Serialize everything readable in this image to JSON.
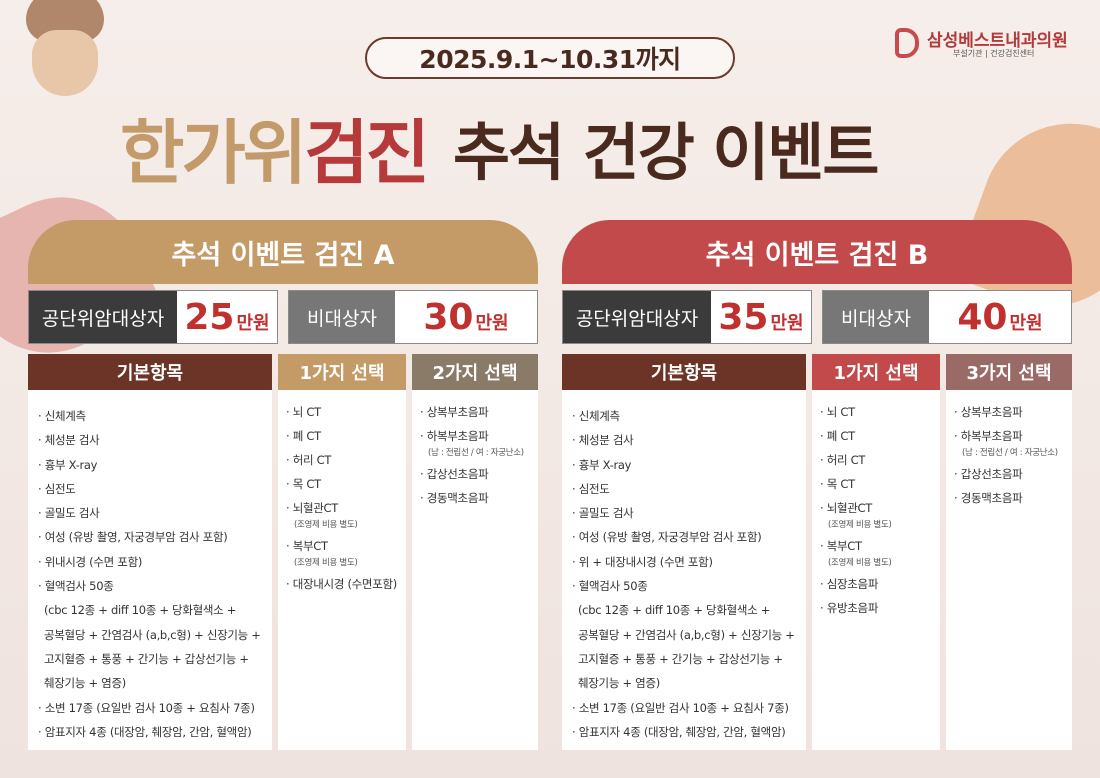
{
  "period": "2025.9.1~10.31까지",
  "logo": {
    "name": "삼성베스트내과의원",
    "sub": "부설기관 | 건강검진센터"
  },
  "title": {
    "part1": "한가위",
    "part2": "검진",
    "part3": "추석 건강 이벤트"
  },
  "colors": {
    "gold": "#c49a66",
    "red": "#c24a4a",
    "brown": "#6b3426",
    "price_red": "#c0302f"
  },
  "panelA": {
    "heading": "추석 이벤트 검진 A",
    "price1": {
      "label": "공단위암대상자",
      "num": "25",
      "unit": "만원"
    },
    "price2": {
      "label": "비대상자",
      "num": "30",
      "unit": "만원"
    },
    "col1": {
      "heading": "기본항목",
      "items": [
        "· 신체계측",
        "· 체성분 검사",
        "· 흉부 X-ray",
        "· 심전도",
        "· 골밀도 검사",
        "· 여성 (유방 촬영, 자궁경부암 검사 포함)",
        "· 위내시경 (수면 포함)",
        "· 혈액검사 50종",
        "(cbc 12종 + diff 10종 + 당화혈색소 +",
        "공복혈당 + 간염검사 (a,b,c형) + 신장기능 +",
        "고지혈증 + 통풍 + 간기능 + 갑상선기능 +",
        "췌장기능 + 염증)",
        "· 소변 17종 (요일반 검사 10종 + 요침사 7종)",
        "· 암표지자 4종 (대장암, 췌장암, 간암, 혈액암)"
      ]
    },
    "col2": {
      "heading": "1가지 선택",
      "items": [
        {
          "t": "· 뇌 CT",
          "n": ""
        },
        {
          "t": "· 폐 CT",
          "n": ""
        },
        {
          "t": "· 허리 CT",
          "n": ""
        },
        {
          "t": "· 목 CT",
          "n": ""
        },
        {
          "t": "· 뇌혈관CT",
          "n": "(조영제 비용 별도)"
        },
        {
          "t": "· 복부CT",
          "n": "(조영제 비용 별도)"
        },
        {
          "t": "· 대장내시경 (수면포함)",
          "n": ""
        }
      ]
    },
    "col3": {
      "heading": "2가지 선택",
      "items": [
        {
          "t": "· 상복부초음파",
          "n": ""
        },
        {
          "t": "· 하복부초음파",
          "n": "(남 : 전립선 / 여 : 자궁난소)"
        },
        {
          "t": "· 갑상선초음파",
          "n": ""
        },
        {
          "t": "· 경동맥초음파",
          "n": ""
        }
      ]
    }
  },
  "panelB": {
    "heading": "추석 이벤트 검진 B",
    "price1": {
      "label": "공단위암대상자",
      "num": "35",
      "unit": "만원"
    },
    "price2": {
      "label": "비대상자",
      "num": "40",
      "unit": "만원"
    },
    "col1": {
      "heading": "기본항목",
      "items": [
        "· 신체계측",
        "· 체성분 검사",
        "· 흉부 X-ray",
        "· 심전도",
        "· 골밀도 검사",
        "· 여성 (유방 촬영, 자궁경부암 검사 포함)",
        "· 위 + 대장내시경 (수면 포함)",
        "· 혈액검사 50종",
        "(cbc 12종 + diff 10종 + 당화혈색소 +",
        "공복혈당 + 간염검사 (a,b,c형) + 신장기능 +",
        "고지혈증 + 통풍 + 간기능 + 갑상선기능 +",
        "췌장기능 + 염증)",
        "· 소변 17종 (요일반 검사 10종 + 요침사 7종)",
        "· 암표지자 4종 (대장암, 췌장암, 간암, 혈액암)"
      ]
    },
    "col2": {
      "heading": "1가지 선택",
      "items": [
        {
          "t": "· 뇌 CT",
          "n": ""
        },
        {
          "t": "· 폐 CT",
          "n": ""
        },
        {
          "t": "· 허리 CT",
          "n": ""
        },
        {
          "t": "· 목 CT",
          "n": ""
        },
        {
          "t": "· 뇌혈관CT",
          "n": "(조영제 비용 별도)"
        },
        {
          "t": "· 복부CT",
          "n": "(조영제 비용 별도)"
        },
        {
          "t": "· 심장초음파",
          "n": ""
        },
        {
          "t": "· 유방초음파",
          "n": ""
        }
      ]
    },
    "col3": {
      "heading": "3가지 선택",
      "items": [
        {
          "t": "· 상복부초음파",
          "n": ""
        },
        {
          "t": "· 하복부초음파",
          "n": "(남 : 전립선 / 여 : 자궁난소)"
        },
        {
          "t": "· 갑상선초음파",
          "n": ""
        },
        {
          "t": "· 경동맥초음파",
          "n": ""
        }
      ]
    }
  }
}
